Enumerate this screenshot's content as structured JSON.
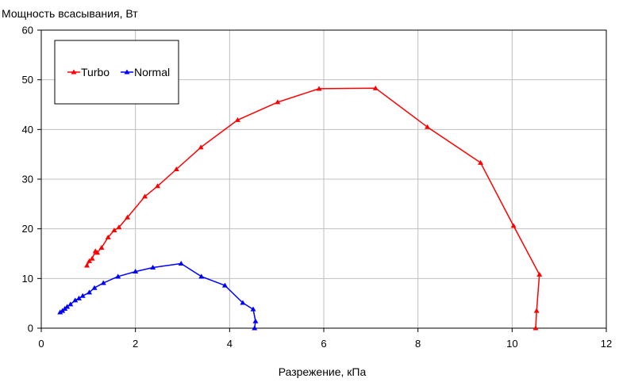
{
  "chart_data": {
    "type": "line",
    "title": "",
    "xlabel": "Разрежение, кПа",
    "ylabel": "Мощность всасывания, Вт",
    "xlim": [
      0,
      12
    ],
    "ylim": [
      0,
      60
    ],
    "x_ticks": [
      0,
      2,
      4,
      6,
      8,
      10,
      12
    ],
    "y_ticks": [
      0,
      10,
      20,
      30,
      40,
      50,
      60
    ],
    "grid": true,
    "legend_position": "top-left",
    "series": [
      {
        "name": "Turbo",
        "color": "#ff0000",
        "marker": "triangle",
        "points": [
          [
            0.97,
            12.6
          ],
          [
            1.02,
            13.5
          ],
          [
            1.08,
            14.0
          ],
          [
            1.15,
            15.5
          ],
          [
            1.19,
            15.2
          ],
          [
            1.28,
            16.2
          ],
          [
            1.42,
            18.3
          ],
          [
            1.55,
            19.7
          ],
          [
            1.65,
            20.3
          ],
          [
            1.83,
            22.3
          ],
          [
            2.2,
            26.5
          ],
          [
            2.47,
            28.6
          ],
          [
            2.87,
            32.0
          ],
          [
            3.39,
            36.4
          ],
          [
            4.17,
            41.9
          ],
          [
            5.02,
            45.5
          ],
          [
            5.9,
            48.2
          ],
          [
            7.1,
            48.3
          ],
          [
            8.2,
            40.5
          ],
          [
            9.33,
            33.3
          ],
          [
            10.03,
            20.6
          ],
          [
            10.58,
            10.8
          ],
          [
            10.52,
            3.5
          ],
          [
            10.5,
            0.0
          ]
        ]
      },
      {
        "name": "Normal",
        "color": "#0000ff",
        "marker": "triangle",
        "points": [
          [
            0.4,
            3.2
          ],
          [
            0.45,
            3.5
          ],
          [
            0.5,
            3.9
          ],
          [
            0.55,
            4.3
          ],
          [
            0.62,
            4.8
          ],
          [
            0.72,
            5.6
          ],
          [
            0.8,
            6.0
          ],
          [
            0.88,
            6.5
          ],
          [
            1.02,
            7.2
          ],
          [
            1.13,
            8.1
          ],
          [
            1.32,
            9.1
          ],
          [
            1.63,
            10.4
          ],
          [
            2.0,
            11.4
          ],
          [
            2.37,
            12.2
          ],
          [
            2.97,
            13.0
          ],
          [
            3.4,
            10.4
          ],
          [
            3.9,
            8.6
          ],
          [
            4.28,
            5.1
          ],
          [
            4.5,
            3.8
          ],
          [
            4.55,
            1.4
          ],
          [
            4.53,
            0.0
          ]
        ]
      }
    ]
  }
}
